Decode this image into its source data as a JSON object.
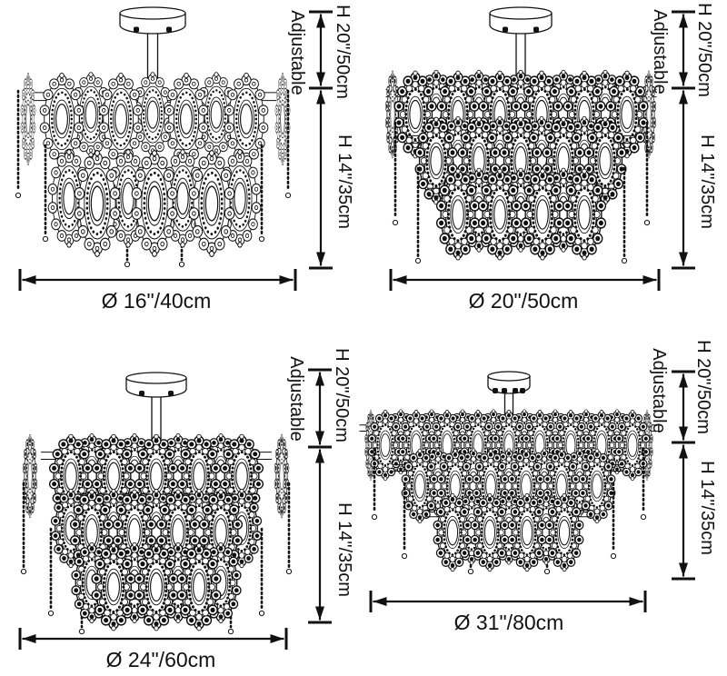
{
  "dims": {
    "adjustable": "Adjustable",
    "height_top": "H 20\"/50cm",
    "height_body": "H 14\"/35cm"
  },
  "variants": [
    {
      "name": "16-inch",
      "diameter": "Ø 16\"/40cm",
      "tiers": 2
    },
    {
      "name": "20-inch",
      "diameter": "Ø 20\"/50cm",
      "tiers": 3
    },
    {
      "name": "24-inch",
      "diameter": "Ø 24\"/60cm",
      "tiers": 3
    },
    {
      "name": "31-inch",
      "diameter": "Ø 31\"/80cm",
      "tiers": 3
    }
  ],
  "colors": {
    "ink": "#111111",
    "background": "#ffffff"
  }
}
